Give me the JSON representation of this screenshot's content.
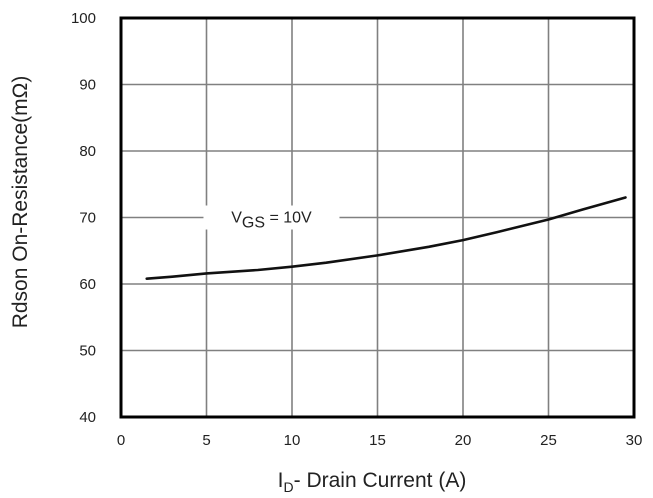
{
  "chart_data": {
    "type": "line",
    "title": "",
    "xlabel": {
      "prefix": "I",
      "subscript": "D",
      "rest": "- Drain Current (A)"
    },
    "ylabel": "Rdson On-Resistance(mΩ)",
    "xlim": [
      0,
      30
    ],
    "ylim": [
      40,
      100
    ],
    "xticks": [
      "0",
      "5",
      "10",
      "15",
      "20",
      "25",
      "30"
    ],
    "yticks": [
      "40",
      "50",
      "60",
      "70",
      "80",
      "90",
      "100"
    ],
    "grid": true,
    "series": [
      {
        "label": {
          "prefix": "V",
          "subscript": "GS",
          "rest": " = 10V"
        },
        "color": "#111111",
        "x": [
          1.5,
          3,
          5,
          8,
          10,
          12,
          15,
          18,
          20,
          22,
          25,
          27,
          29.5
        ],
        "y": [
          60.8,
          61.1,
          61.6,
          62.1,
          62.6,
          63.2,
          64.3,
          65.6,
          66.6,
          67.8,
          69.7,
          71.2,
          73.0
        ]
      }
    ]
  }
}
